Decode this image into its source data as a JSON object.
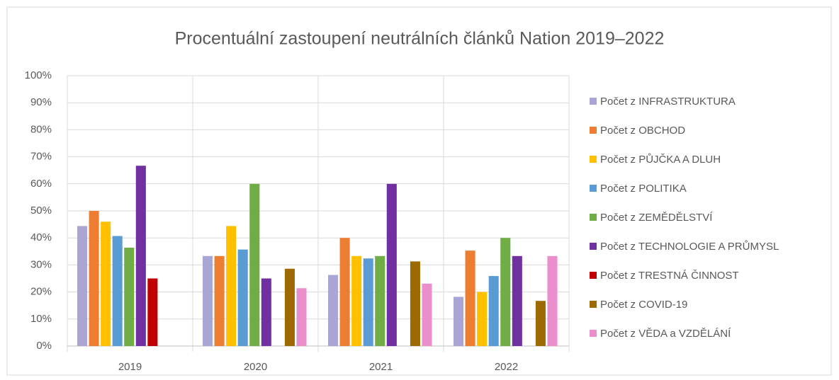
{
  "chart_data": {
    "type": "bar",
    "title": "Procentuální zastoupení neutrálních článků Nation 2019–2022",
    "categories": [
      "2019",
      "2020",
      "2021",
      "2022"
    ],
    "series": [
      {
        "name": "Počet z INFRASTRUKTURA",
        "color": "#a9a6d6",
        "values": [
          44.4,
          33.3,
          26.3,
          18.2
        ]
      },
      {
        "name": "Počet z OBCHOD",
        "color": "#ed7d31",
        "values": [
          50,
          33.3,
          40,
          35.3
        ]
      },
      {
        "name": "Počet z PŮJČKA A DLUH",
        "color": "#ffc000",
        "values": [
          46,
          44.4,
          33.3,
          20
        ]
      },
      {
        "name": "Počet z POLITIKA",
        "color": "#5b9bd5",
        "values": [
          40.7,
          35.7,
          32.4,
          25.9
        ]
      },
      {
        "name": "Počet z ZEMĚDĚLSTVÍ",
        "color": "#70ad47",
        "values": [
          36.4,
          60,
          33.3,
          40
        ]
      },
      {
        "name": "Počet z TECHNOLOGIE A PRŮMYSL",
        "color": "#7030a0",
        "values": [
          66.7,
          25,
          60,
          33.3
        ]
      },
      {
        "name": "Počet z TRESTNÁ ČINNOST",
        "color": "#c00000",
        "values": [
          25,
          null,
          null,
          null
        ]
      },
      {
        "name": "Počet z COVID-19",
        "color": "#9c6a00",
        "values": [
          null,
          28.6,
          31.3,
          16.7
        ]
      },
      {
        "name": "Počet z VĚDA a VZDĚLÁNÍ",
        "color": "#ea8fcc",
        "values": [
          null,
          21.4,
          23.1,
          33.3
        ]
      }
    ],
    "ylim": [
      0,
      100
    ],
    "yticks": [
      {
        "value": 0,
        "label": "0%"
      },
      {
        "value": 10,
        "label": "10%"
      },
      {
        "value": 20,
        "label": "20%"
      },
      {
        "value": 30,
        "label": "30%"
      },
      {
        "value": 40,
        "label": "40%"
      },
      {
        "value": 50,
        "label": "50%"
      },
      {
        "value": 60,
        "label": "60%"
      },
      {
        "value": 70,
        "label": "70%"
      },
      {
        "value": 80,
        "label": "80%"
      },
      {
        "value": 90,
        "label": "90%"
      },
      {
        "value": 100,
        "label": "100%"
      }
    ],
    "grid": true,
    "legend": "right"
  }
}
